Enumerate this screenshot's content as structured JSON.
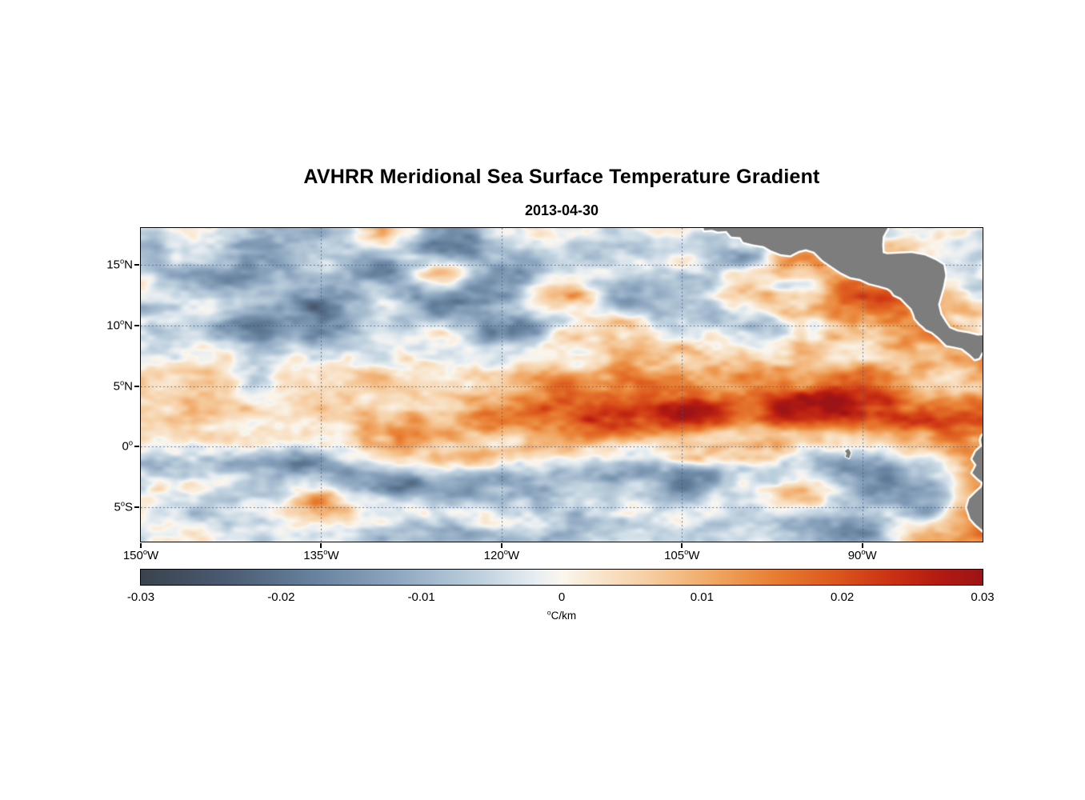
{
  "figure": {
    "title": "AVHRR Meridional Sea Surface Temperature Gradient",
    "subtitle_date": "2013-04-30"
  },
  "chart_data": {
    "type": "heatmap",
    "title": "AVHRR Meridional Sea Surface Temperature Gradient",
    "subtitle": "2013-04-30",
    "deg_char": "o",
    "lon_range": [
      -150,
      -80
    ],
    "lat_range": [
      -7.8,
      18
    ],
    "grid_on": true,
    "grid_line_color": "#3f5d8a",
    "xticks": [
      {
        "lon": -150,
        "label": "150",
        "suffix": "W"
      },
      {
        "lon": -135,
        "label": "135",
        "suffix": "W"
      },
      {
        "lon": -120,
        "label": "120",
        "suffix": "W"
      },
      {
        "lon": -105,
        "label": "105",
        "suffix": "W"
      },
      {
        "lon": -90,
        "label": "90",
        "suffix": "W"
      }
    ],
    "yticks": [
      {
        "lat": 15,
        "label": "15",
        "suffix": "N"
      },
      {
        "lat": 10,
        "label": "10",
        "suffix": "N"
      },
      {
        "lat": 5,
        "label": "5",
        "suffix": "N"
      },
      {
        "lat": 0,
        "label": "0",
        "suffix": ""
      },
      {
        "lat": -5,
        "label": "5",
        "suffix": "S"
      }
    ],
    "colorbar": {
      "min": -0.03,
      "max": 0.03,
      "ticks": [
        -0.03,
        -0.02,
        -0.01,
        0,
        0.01,
        0.02,
        0.03
      ],
      "tick_labels": [
        "-0.03",
        "-0.02",
        "-0.01",
        "0",
        "0.01",
        "0.02",
        "0.03"
      ],
      "unit_sup": "o",
      "unit_text": "C/km",
      "stops": [
        {
          "t": 0.0,
          "color": "#3a434e"
        },
        {
          "t": 0.1,
          "color": "#4a5a71"
        },
        {
          "t": 0.2,
          "color": "#64809c"
        },
        {
          "t": 0.3,
          "color": "#8ca5bf"
        },
        {
          "t": 0.4,
          "color": "#bccfdd"
        },
        {
          "t": 0.47,
          "color": "#e8eef2"
        },
        {
          "t": 0.5,
          "color": "#faf6ee"
        },
        {
          "t": 0.53,
          "color": "#f9ead6"
        },
        {
          "t": 0.6,
          "color": "#f6cfa4"
        },
        {
          "t": 0.68,
          "color": "#f0a763"
        },
        {
          "t": 0.75,
          "color": "#e87f33"
        },
        {
          "t": 0.82,
          "color": "#dd5a1e"
        },
        {
          "t": 0.89,
          "color": "#cb3113"
        },
        {
          "t": 0.95,
          "color": "#b21a12"
        },
        {
          "t": 1.0,
          "color": "#9c1416"
        }
      ]
    },
    "grid": {
      "lons": [
        -150,
        -145,
        -140,
        -135,
        -130,
        -125,
        -120,
        -115,
        -110,
        -105,
        -100,
        -95,
        -90,
        -85,
        -80
      ],
      "lats": [
        17.5,
        15,
        12.5,
        10,
        7.5,
        5,
        2.5,
        0,
        -2.5,
        -5,
        -7.5
      ],
      "values": [
        [
          -0.006,
          -0.002,
          -0.007,
          -0.003,
          0.005,
          -0.014,
          -0.01,
          0.004,
          -0.006,
          -0.003,
          -0.008,
          0.003,
          -0.004,
          0.002,
          -0.004
        ],
        [
          -0.009,
          -0.004,
          -0.012,
          -0.006,
          -0.013,
          0.006,
          -0.016,
          -0.008,
          -0.004,
          0.003,
          -0.007,
          0.008,
          -0.003,
          0.004,
          0.002
        ],
        [
          -0.005,
          -0.01,
          -0.006,
          -0.013,
          -0.004,
          -0.016,
          -0.01,
          0.007,
          -0.012,
          -0.005,
          0.004,
          -0.006,
          0.016,
          0.01,
          0.0
        ],
        [
          -0.008,
          -0.004,
          -0.014,
          -0.017,
          -0.009,
          -0.005,
          -0.011,
          -0.006,
          0.005,
          -0.007,
          -0.009,
          0.005,
          0.013,
          0.009,
          0.004
        ],
        [
          -0.003,
          0.002,
          -0.005,
          -0.007,
          0.003,
          0.005,
          -0.004,
          0.004,
          0.009,
          0.007,
          0.005,
          0.011,
          0.007,
          0.013,
          0.008
        ],
        [
          0.001,
          0.003,
          0.002,
          0.004,
          0.006,
          0.004,
          0.007,
          0.009,
          0.011,
          0.013,
          0.011,
          0.009,
          0.013,
          0.011,
          0.009
        ],
        [
          0.004,
          0.005,
          0.006,
          0.009,
          0.012,
          0.016,
          0.02,
          0.018,
          0.022,
          0.024,
          0.02,
          0.026,
          0.029,
          0.024,
          0.02
        ],
        [
          0.002,
          0.003,
          0.004,
          0.005,
          0.006,
          0.008,
          0.006,
          0.008,
          0.006,
          0.005,
          0.008,
          0.006,
          0.005,
          0.011,
          0.016
        ],
        [
          -0.007,
          -0.005,
          -0.009,
          -0.013,
          -0.011,
          -0.007,
          -0.011,
          -0.009,
          -0.013,
          -0.015,
          -0.009,
          -0.007,
          -0.013,
          -0.005,
          0.009
        ],
        [
          -0.004,
          -0.002,
          -0.006,
          0.007,
          -0.005,
          -0.007,
          -0.004,
          -0.006,
          -0.005,
          -0.009,
          -0.003,
          0.005,
          -0.007,
          -0.011,
          0.013
        ],
        [
          -0.002,
          -0.004,
          -0.001,
          -0.005,
          -0.003,
          -0.006,
          -0.004,
          -0.003,
          -0.007,
          -0.004,
          -0.005,
          -0.009,
          -0.011,
          0.008,
          0.012
        ]
      ]
    },
    "land": {
      "color": "#7d7d7d",
      "outline": "#ffffff",
      "polygons": [
        {
          "name": "central-america",
          "outline_width": 5,
          "points": [
            [
              -103.55,
              18.6
            ],
            [
              -103.45,
              18.1
            ],
            [
              -103.2,
              18.05
            ],
            [
              -103.15,
              17.8
            ],
            [
              -102.5,
              17.85
            ],
            [
              -102.0,
              17.7
            ],
            [
              -101.3,
              17.75
            ],
            [
              -100.9,
              17.3
            ],
            [
              -100.15,
              17.25
            ],
            [
              -99.9,
              16.85
            ],
            [
              -99.1,
              16.65
            ],
            [
              -98.2,
              16.5
            ],
            [
              -97.6,
              16.15
            ],
            [
              -96.8,
              15.85
            ],
            [
              -96.0,
              15.75
            ],
            [
              -95.3,
              16.1
            ],
            [
              -94.7,
              16.25
            ],
            [
              -94.0,
              16.05
            ],
            [
              -93.3,
              15.35
            ],
            [
              -92.4,
              14.75
            ],
            [
              -91.8,
              14.35
            ],
            [
              -91.0,
              13.95
            ],
            [
              -90.2,
              13.8
            ],
            [
              -89.4,
              13.45
            ],
            [
              -88.6,
              13.25
            ],
            [
              -87.9,
              13.05
            ],
            [
              -87.6,
              12.85
            ],
            [
              -87.35,
              12.5
            ],
            [
              -86.8,
              12.25
            ],
            [
              -86.3,
              11.75
            ],
            [
              -85.9,
              11.35
            ],
            [
              -85.7,
              10.9
            ],
            [
              -85.6,
              10.55
            ],
            [
              -85.2,
              10.1
            ],
            [
              -84.95,
              9.9
            ],
            [
              -84.7,
              9.65
            ],
            [
              -84.2,
              9.45
            ],
            [
              -83.65,
              9.0
            ],
            [
              -83.0,
              8.35
            ],
            [
              -82.4,
              8.25
            ],
            [
              -81.7,
              8.1
            ],
            [
              -81.05,
              7.6
            ],
            [
              -80.65,
              7.2
            ],
            [
              -80.3,
              7.3
            ],
            [
              -80.1,
              7.7
            ],
            [
              -79.7,
              8.1
            ],
            [
              -79.7,
              9.2
            ],
            [
              -80.4,
              9.15
            ],
            [
              -81.2,
              9.35
            ],
            [
              -82.1,
              9.5
            ],
            [
              -82.75,
              9.75
            ],
            [
              -83.1,
              10.25
            ],
            [
              -83.5,
              10.9
            ],
            [
              -83.7,
              11.7
            ],
            [
              -83.5,
              12.4
            ],
            [
              -83.3,
              13.1
            ],
            [
              -83.1,
              14.1
            ],
            [
              -83.25,
              14.95
            ],
            [
              -83.9,
              15.35
            ],
            [
              -84.8,
              15.75
            ],
            [
              -85.9,
              15.95
            ],
            [
              -87.0,
              15.9
            ],
            [
              -87.95,
              15.85
            ],
            [
              -88.3,
              15.95
            ],
            [
              -88.35,
              16.6
            ],
            [
              -88.3,
              17.3
            ],
            [
              -87.9,
              18.0
            ],
            [
              -87.85,
              18.6
            ]
          ]
        },
        {
          "name": "south-america",
          "outline_width": 5,
          "points": [
            [
              -79.7,
              1.1
            ],
            [
              -80.05,
              0.9
            ],
            [
              -80.15,
              0.55
            ],
            [
              -80.05,
              0.05
            ],
            [
              -80.55,
              -0.4
            ],
            [
              -80.85,
              -1.0
            ],
            [
              -80.5,
              -1.5
            ],
            [
              -80.85,
              -2.15
            ],
            [
              -80.4,
              -2.6
            ],
            [
              -79.95,
              -2.95
            ],
            [
              -80.1,
              -3.35
            ],
            [
              -80.55,
              -3.75
            ],
            [
              -81.1,
              -4.3
            ],
            [
              -81.3,
              -5.0
            ],
            [
              -81.0,
              -5.9
            ],
            [
              -80.55,
              -6.4
            ],
            [
              -79.9,
              -6.95
            ],
            [
              -79.7,
              -7.1
            ]
          ]
        },
        {
          "name": "galapagos",
          "outline_width": 2.5,
          "points": [
            [
              -91.45,
              -0.35
            ],
            [
              -91.15,
              -0.15
            ],
            [
              -90.95,
              -0.5
            ],
            [
              -91.1,
              -0.95
            ],
            [
              -91.4,
              -0.8
            ],
            [
              -91.3,
              -0.55
            ]
          ]
        }
      ]
    }
  }
}
